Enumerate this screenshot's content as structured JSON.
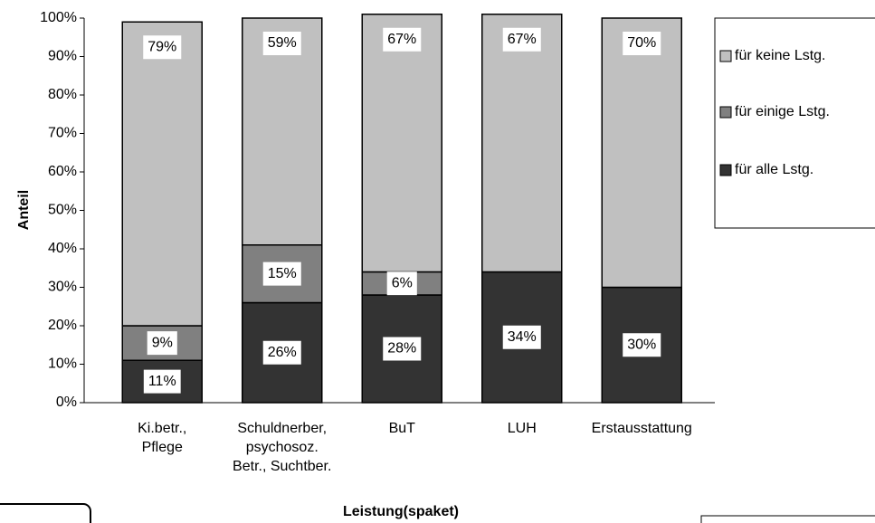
{
  "chart_data": {
    "type": "stacked_bar",
    "y_label": "Anteil",
    "x_label": "Leistung(spaket)",
    "categories": [
      "Ki.betr.,\nPflege",
      "Schuldnerber,\npsychosoz.\nBetr., Suchtber.",
      "BuT",
      "LUH",
      "Erstausstattung"
    ],
    "series": [
      {
        "name": "für alle Lstg.",
        "color": "#333333",
        "values": [
          11,
          26,
          28,
          34,
          30
        ],
        "value_labels": [
          "11%",
          "26%",
          "28%",
          "34%",
          "30%"
        ]
      },
      {
        "name": "für einige Lstg.",
        "color": "#808080",
        "values": [
          9,
          15,
          6,
          null,
          null
        ],
        "value_labels": [
          "9%",
          "15%",
          "6%",
          null,
          null
        ]
      },
      {
        "name": "für keine Lstg.",
        "color": "#c0c0c0",
        "values": [
          79,
          59,
          67,
          67,
          70
        ],
        "value_labels": [
          "79%",
          "59%",
          "67%",
          "67%",
          "70%"
        ]
      }
    ],
    "ylim": [
      0,
      100
    ],
    "yticks": [
      {
        "value": 0,
        "label": "0%"
      },
      {
        "value": 10,
        "label": "10%"
      },
      {
        "value": 20,
        "label": "20%"
      },
      {
        "value": 30,
        "label": "30%"
      },
      {
        "value": 40,
        "label": "40%"
      },
      {
        "value": 50,
        "label": "50%"
      },
      {
        "value": 60,
        "label": "60%"
      },
      {
        "value": 70,
        "label": "70%"
      },
      {
        "value": 80,
        "label": "80%"
      },
      {
        "value": 90,
        "label": "90%"
      },
      {
        "value": 100,
        "label": "100%"
      }
    ],
    "legend": "right"
  }
}
